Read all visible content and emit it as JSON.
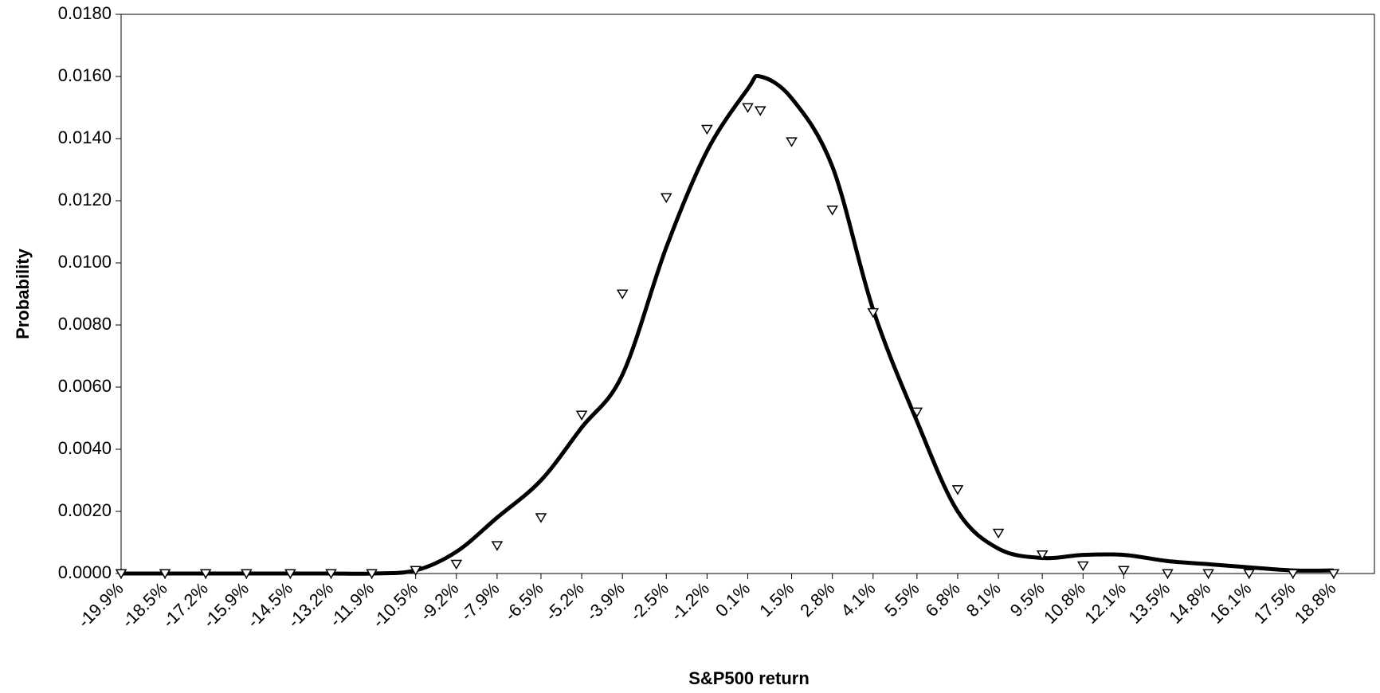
{
  "chart_data": {
    "type": "line",
    "x_label": "S&P500 return",
    "y_label": "Probability",
    "x": [
      -19.9,
      -18.5,
      -17.2,
      -15.9,
      -14.5,
      -13.2,
      -11.9,
      -10.5,
      -9.2,
      -7.9,
      -6.5,
      -5.2,
      -3.9,
      -2.5,
      -1.2,
      0.1,
      0.5,
      1.5,
      2.8,
      4.1,
      5.5,
      6.8,
      8.1,
      9.5,
      10.8,
      12.1,
      13.5,
      14.8,
      16.1,
      17.5,
      18.8
    ],
    "series": [
      {
        "color": "#000000",
        "style": "solid",
        "values": [
          0,
          0,
          0,
          0,
          0,
          0,
          0,
          0.0001,
          0.0007,
          0.0018,
          0.003,
          0.0047,
          0.0064,
          0.0105,
          0.0136,
          0.0156,
          0.016,
          0.0153,
          0.0131,
          0.0085,
          0.0049,
          0.002,
          0.0008,
          0.0005,
          0.0006,
          0.0006,
          0.0004,
          0.0003,
          0.0002,
          0.0001,
          0.0001
        ]
      },
      {
        "color": "#000000",
        "style": "triangle",
        "values": [
          0,
          0,
          0,
          0,
          0,
          0,
          0,
          0.0001,
          0.0003,
          0.0009,
          0.0018,
          0.0051,
          0.009,
          0.0121,
          0.0143,
          0.015,
          0.0149,
          0.0139,
          0.0117,
          0.0084,
          0.0052,
          0.0027,
          0.0013,
          0.0006,
          0.00025,
          0.0001,
          0,
          0,
          0,
          0,
          0
        ]
      }
    ],
    "xlim": [
      -19.9,
      20.1
    ],
    "xticks": [
      {
        "value": -19.9,
        "label": "-19.9%"
      },
      {
        "value": -18.5,
        "label": "-18.5%"
      },
      {
        "value": -17.2,
        "label": "-17.2%"
      },
      {
        "value": -15.9,
        "label": "-15.9%"
      },
      {
        "value": -14.5,
        "label": "-14.5%"
      },
      {
        "value": -13.2,
        "label": "-13.2%"
      },
      {
        "value": -11.9,
        "label": "-11.9%"
      },
      {
        "value": -10.5,
        "label": "-10.5%"
      },
      {
        "value": -9.2,
        "label": "-9.2%"
      },
      {
        "value": -7.9,
        "label": "-7.9%"
      },
      {
        "value": -6.5,
        "label": "-6.5%"
      },
      {
        "value": -5.2,
        "label": "-5.2%"
      },
      {
        "value": -3.9,
        "label": "-3.9%"
      },
      {
        "value": -2.5,
        "label": "-2.5%"
      },
      {
        "value": -1.2,
        "label": "-1.2%"
      },
      {
        "value": 0.1,
        "label": "0.1%"
      },
      {
        "value": 1.5,
        "label": "1.5%"
      },
      {
        "value": 2.8,
        "label": "2.8%"
      },
      {
        "value": 4.1,
        "label": "4.1%"
      },
      {
        "value": 5.5,
        "label": "5.5%"
      },
      {
        "value": 6.8,
        "label": "6.8%"
      },
      {
        "value": 8.1,
        "label": "8.1%"
      },
      {
        "value": 9.5,
        "label": "9.5%"
      },
      {
        "value": 10.8,
        "label": "10.8%"
      },
      {
        "value": 12.1,
        "label": "12.1%"
      },
      {
        "value": 13.5,
        "label": "13.5%"
      },
      {
        "value": 14.8,
        "label": "14.8%"
      },
      {
        "value": 16.1,
        "label": "16.1%"
      },
      {
        "value": 17.5,
        "label": "17.5%"
      },
      {
        "value": 18.8,
        "label": "18.8%"
      }
    ],
    "ylim": [
      0,
      0.018
    ],
    "yticks": [
      {
        "value": 0,
        "label": "0.0000"
      },
      {
        "value": 0.002,
        "label": "0.0020"
      },
      {
        "value": 0.004,
        "label": "0.0040"
      },
      {
        "value": 0.006,
        "label": "0.0060"
      },
      {
        "value": 0.008,
        "label": "0.0080"
      },
      {
        "value": 0.01,
        "label": "0.0100"
      },
      {
        "value": 0.012,
        "label": "0.0120"
      },
      {
        "value": 0.014,
        "label": "0.0140"
      },
      {
        "value": 0.016,
        "label": "0.0160"
      },
      {
        "value": 0.018,
        "label": "0.0180"
      }
    ],
    "grid": false
  }
}
